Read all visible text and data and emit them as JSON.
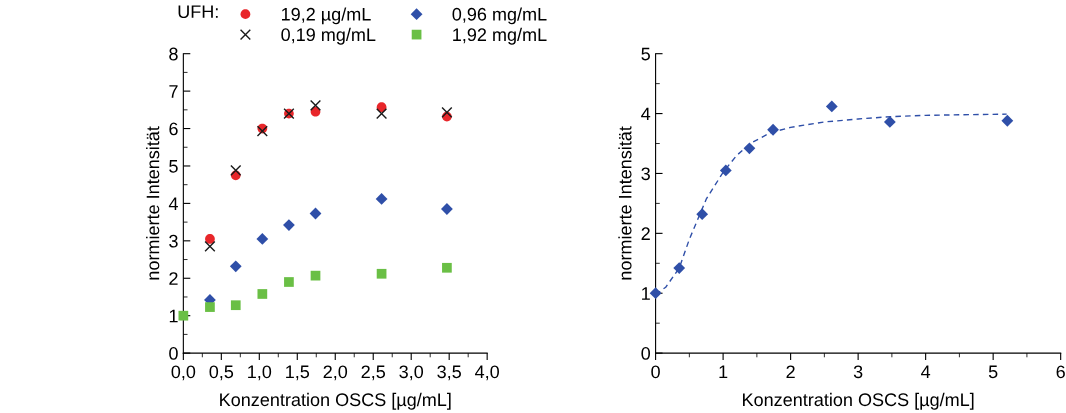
{
  "chart_data": [
    {
      "type": "scatter",
      "legend_title": "UFH:",
      "xlabel": "Konzentration OSCS [µg/mL]",
      "ylabel": "normierte Intensität",
      "legend": "top",
      "grid": false,
      "xlim": [
        0,
        4
      ],
      "xticks": [
        {
          "value": 0,
          "label": "0,0"
        },
        {
          "value": 0.5,
          "label": "0,5"
        },
        {
          "value": 1,
          "label": "1,0"
        },
        {
          "value": 1.5,
          "label": "1,5"
        },
        {
          "value": 2,
          "label": "2,0"
        },
        {
          "value": 2.5,
          "label": "2,5"
        },
        {
          "value": 3,
          "label": "3,0"
        },
        {
          "value": 3.5,
          "label": "3,5"
        },
        {
          "value": 4,
          "label": "4,0"
        }
      ],
      "ylim": [
        0,
        8
      ],
      "yticks": [
        0,
        1,
        2,
        3,
        4,
        5,
        6,
        7,
        8
      ],
      "series": [
        {
          "name": "19,2 µg/mL",
          "color": "#e8262a",
          "marker": "circle",
          "x": [
            0.35,
            0.69,
            1.04,
            1.39,
            1.74,
            2.61,
            3.47
          ],
          "values": [
            3.05,
            4.75,
            6.0,
            6.4,
            6.45,
            6.57,
            6.32
          ]
        },
        {
          "name": "0,19 mg/mL",
          "color": "#1a1a1a",
          "marker": "cross",
          "x": [
            0.35,
            0.69,
            1.04,
            1.39,
            1.74,
            2.61,
            3.47
          ],
          "values": [
            2.85,
            4.88,
            5.93,
            6.4,
            6.62,
            6.4,
            6.43
          ]
        },
        {
          "name": "0,96 mg/mL",
          "color": "#2f4fa8",
          "marker": "diamond",
          "x": [
            0.35,
            0.69,
            1.04,
            1.39,
            1.74,
            2.61,
            3.47
          ],
          "values": [
            1.42,
            2.32,
            3.05,
            3.42,
            3.73,
            4.12,
            3.85
          ]
        },
        {
          "name": "1,92 mg/mL",
          "color": "#6abf45",
          "marker": "square",
          "x": [
            0,
            0.35,
            0.69,
            1.04,
            1.39,
            1.74,
            2.61,
            3.47
          ],
          "values": [
            1.0,
            1.23,
            1.28,
            1.58,
            1.9,
            2.07,
            2.12,
            2.28
          ]
        }
      ]
    },
    {
      "type": "scatter",
      "xlabel": "Konzentration OSCS [µg/mL]",
      "ylabel": "normierte Intensität",
      "legend": false,
      "grid": false,
      "xlim": [
        0,
        6
      ],
      "xticks": [
        0,
        1,
        2,
        3,
        4,
        5,
        6
      ],
      "ylim": [
        0,
        5
      ],
      "yticks": [
        0,
        1,
        2,
        3,
        4,
        5
      ],
      "series": [
        {
          "color": "#2f4fa8",
          "marker": "diamond",
          "x": [
            0,
            0.35,
            0.69,
            1.04,
            1.39,
            1.74,
            2.61,
            3.47,
            5.21
          ],
          "values": [
            1.0,
            1.42,
            2.32,
            3.05,
            3.42,
            3.73,
            4.12,
            3.86,
            3.88
          ]
        },
        {
          "type": "line",
          "line_style": "dashed",
          "marker": "none",
          "color": "#2f4fa8",
          "x": [
            0,
            0.15,
            0.35,
            0.5,
            0.75,
            1.0,
            1.2,
            1.4,
            1.7,
            2.0,
            2.5,
            3.0,
            3.5,
            4.0,
            4.5,
            5.2
          ],
          "values": [
            0.98,
            1.1,
            1.42,
            1.9,
            2.57,
            3.02,
            3.3,
            3.5,
            3.68,
            3.77,
            3.86,
            3.91,
            3.95,
            3.97,
            3.98,
            3.99
          ]
        }
      ]
    }
  ]
}
